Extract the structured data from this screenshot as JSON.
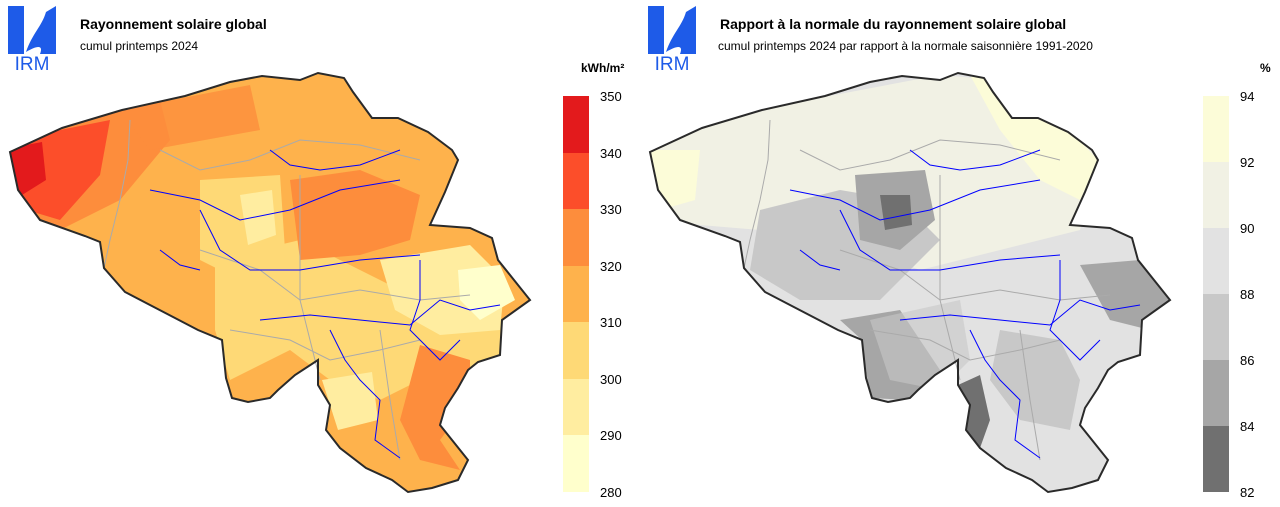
{
  "logo_text": "IRM",
  "left": {
    "title": "Rayonnement solaire global",
    "subtitle": "cumul printemps 2024",
    "unit": "kWh/m²",
    "legend": {
      "ticks": [
        "350",
        "340",
        "330",
        "320",
        "310",
        "300",
        "290",
        "280"
      ],
      "colors": [
        "#e31a1c",
        "#fc4e2a",
        "#fd8d3c",
        "#feb24c",
        "#fed976",
        "#ffeda0",
        "#ffffcc"
      ]
    }
  },
  "right": {
    "title": "Rapport à la normale du rayonnement solaire global",
    "subtitle": "cumul printemps 2024 par rapport à la normale saisonnière 1991-2020",
    "unit": "%",
    "legend": {
      "ticks": [
        "94",
        "92",
        "90",
        "88",
        "86",
        "84",
        "82"
      ],
      "colors": [
        "#fcfcd8",
        "#f1f1e4",
        "#e2e2e2",
        "#c8c8c8",
        "#a6a6a6",
        "#707070"
      ]
    }
  }
}
